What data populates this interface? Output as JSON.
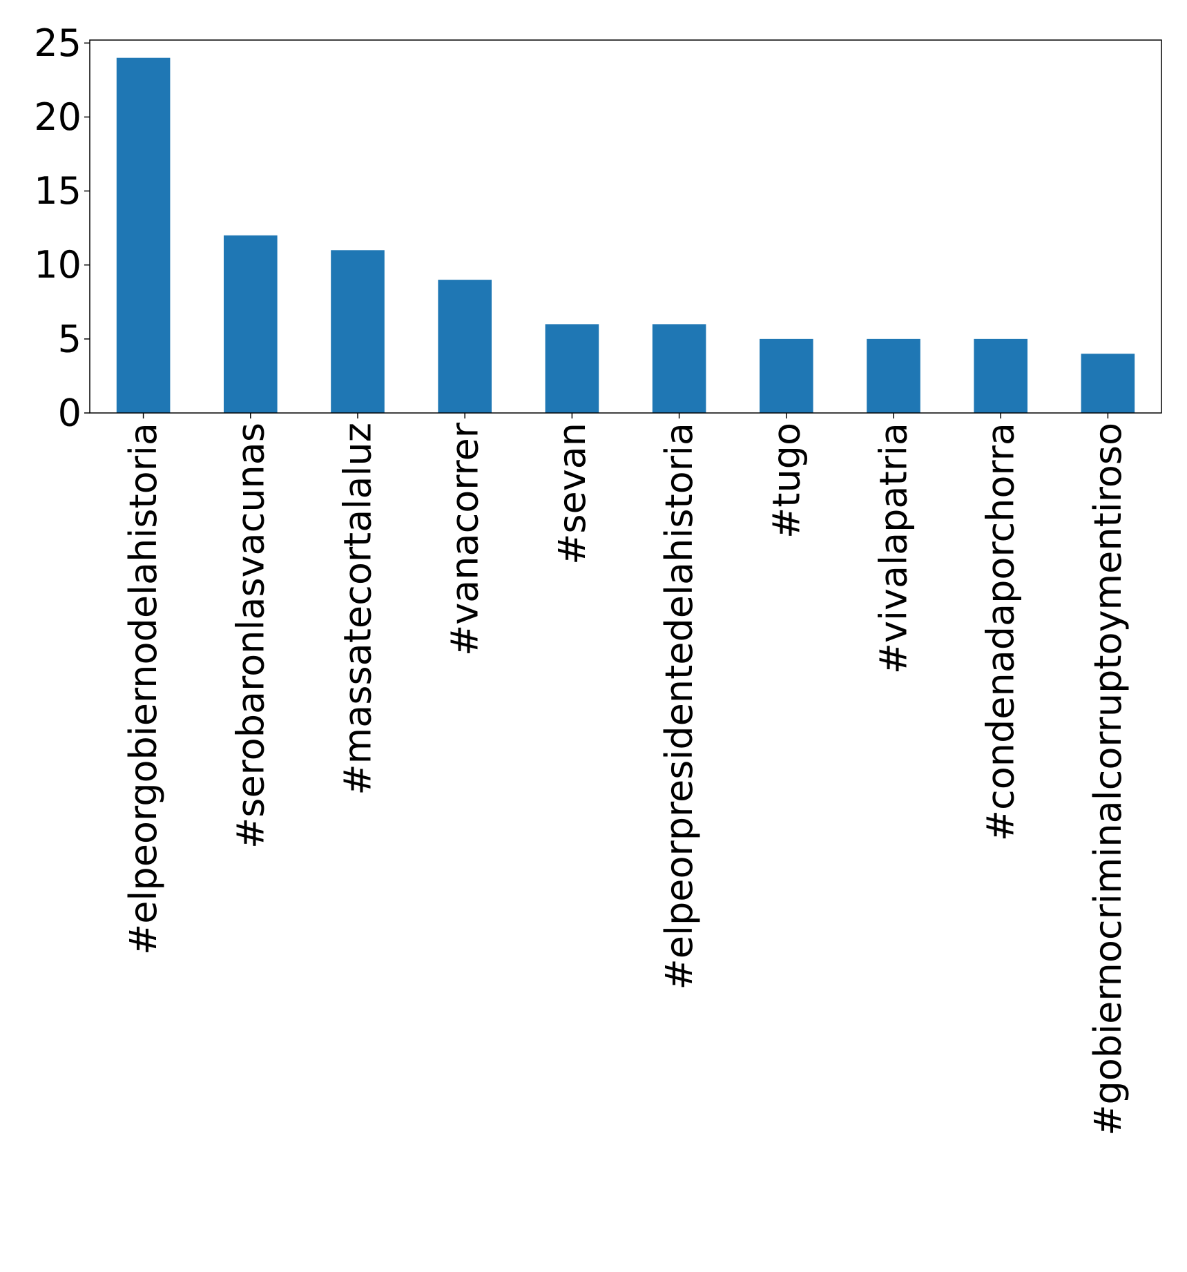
{
  "chart_data": {
    "type": "bar",
    "categories": [
      "#elpeorgobiernodelahistoria",
      "#serobaronlasvacunas",
      "#massatecortalaluz",
      "#vanacorrer",
      "#sevan",
      "#elpeorpresidentedelahistoria",
      "#tugo",
      "#vivalapatria",
      "#condenadaporchorra",
      "#gobiernocriminalcorruptoymentiroso"
    ],
    "values": [
      24,
      12,
      11,
      9,
      6,
      6,
      5,
      5,
      5,
      4
    ],
    "ylim": [
      0,
      25.2
    ],
    "yticks": [
      0,
      5,
      10,
      15,
      20,
      25
    ],
    "bar_color": "#1f77b4",
    "grid": false
  }
}
